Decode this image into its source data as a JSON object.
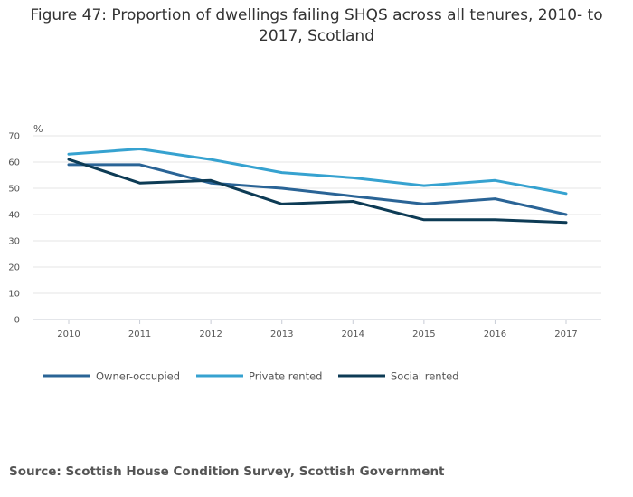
{
  "title_line1": "Figure 47: Proportion of dwellings failing SHQS across all tenures, 2010- to",
  "title_line2": "2017, Scotland",
  "source": "Source: Scottish House Condition Survey, Scottish Government",
  "chart_data": {
    "type": "line",
    "title": "Figure 47: Proportion of dwellings failing SHQS across all tenures, 2010- to 2017, Scotland",
    "xlabel": "",
    "ylabel": "%",
    "x": [
      "2010",
      "2011",
      "2012",
      "2013",
      "2014",
      "2015",
      "2016",
      "2017"
    ],
    "ylim": [
      0,
      70
    ],
    "yticks": [
      "0",
      "10",
      "20",
      "30",
      "40",
      "50",
      "60",
      "70"
    ],
    "grid": true,
    "legend_position": "bottom-left",
    "series": [
      {
        "name": "Owner-occupied",
        "color": "#2a6496",
        "values": [
          59,
          59,
          52,
          50,
          47,
          44,
          46,
          40
        ]
      },
      {
        "name": "Private rented",
        "color": "#36a2d0",
        "values": [
          63,
          65,
          61,
          56,
          54,
          51,
          53,
          48
        ]
      },
      {
        "name": "Social rented",
        "color": "#0d3b55",
        "values": [
          61,
          52,
          53,
          44,
          45,
          38,
          38,
          37
        ]
      }
    ]
  }
}
